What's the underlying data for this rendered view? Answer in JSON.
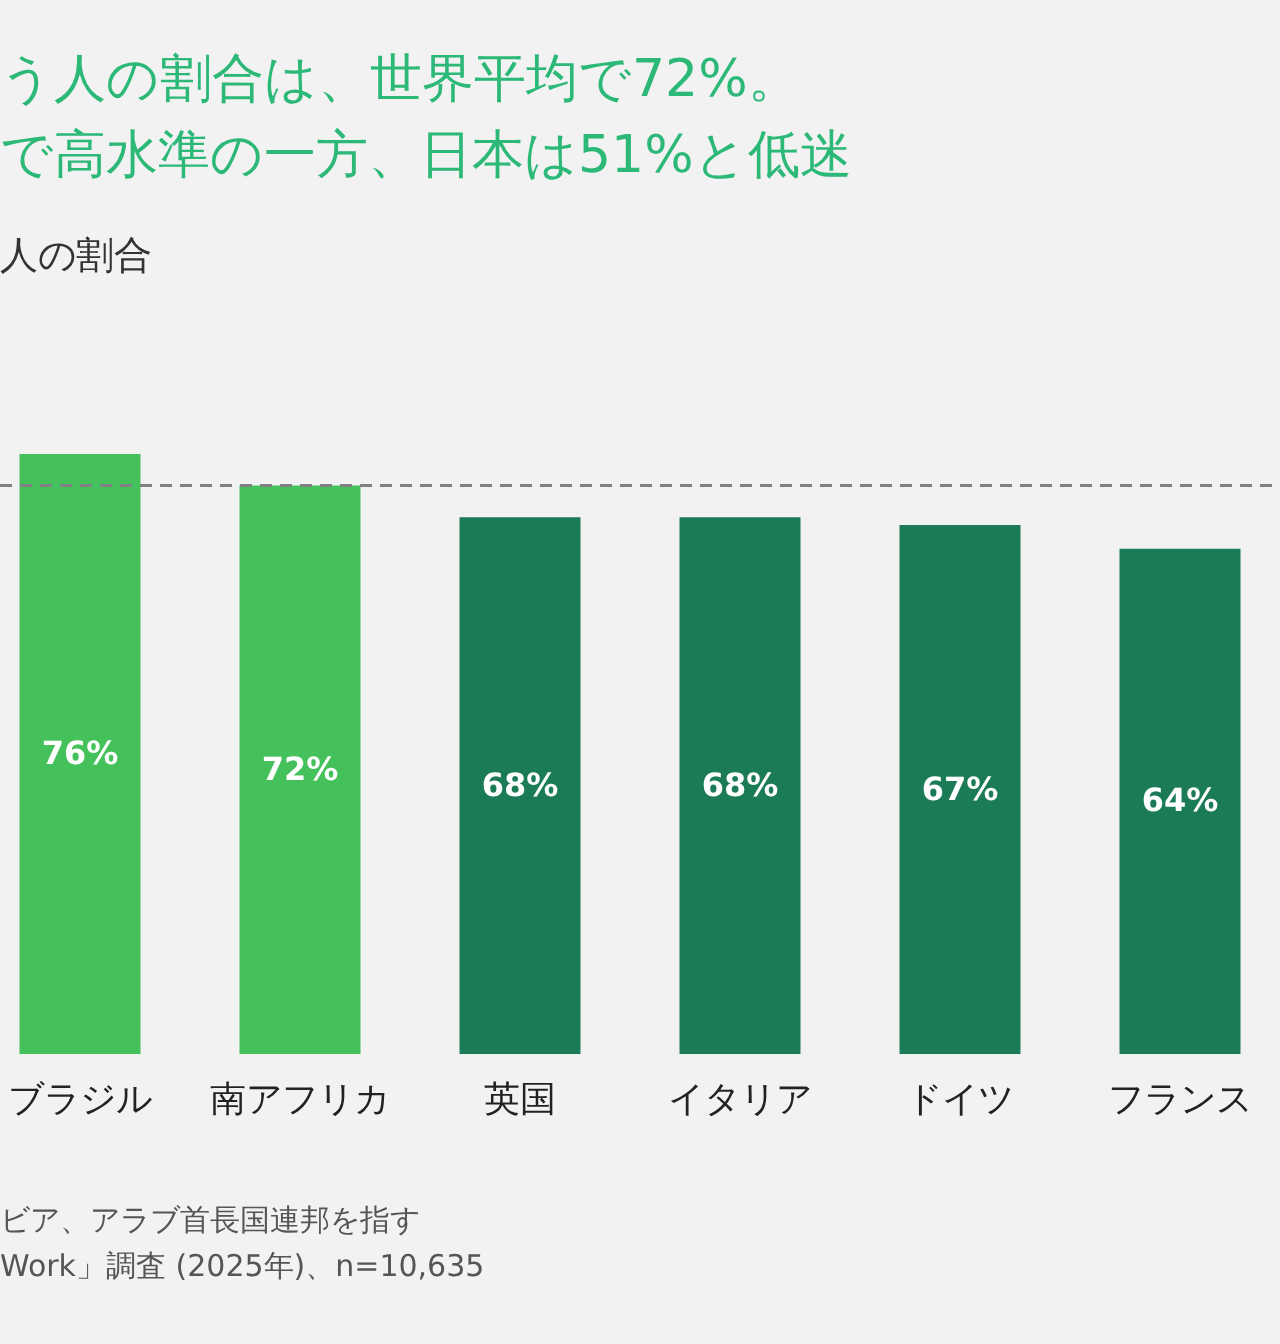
{
  "chart_data": {
    "type": "bar",
    "title": "う人の割合は、世界平均で72%。",
    "subtitle": "で高水準の一方、日本は51%と低迷",
    "categories": [
      "ブラジル",
      "南アフリカ",
      "英国",
      "イタリア",
      "ドイツ",
      "フランス"
    ],
    "values": [
      76,
      72,
      68,
      68,
      67,
      64
    ],
    "value_labels": [
      "76%",
      "72%",
      "68%",
      "68%",
      "67%",
      "64%"
    ],
    "colors": [
      "#45c15b",
      "#45c15b",
      "#1b7b56",
      "#1b7b56",
      "#1b7b56",
      "#1b7b56"
    ],
    "ref_lines": [
      {
        "axis": "y",
        "value": 72,
        "color": "#808080",
        "line_style": "dashed"
      }
    ],
    "annotations": [
      "人の割合",
      "ビア、アラブ首長国連邦を指す",
      "Work」調査 (2025年)、n=10,635"
    ]
  }
}
